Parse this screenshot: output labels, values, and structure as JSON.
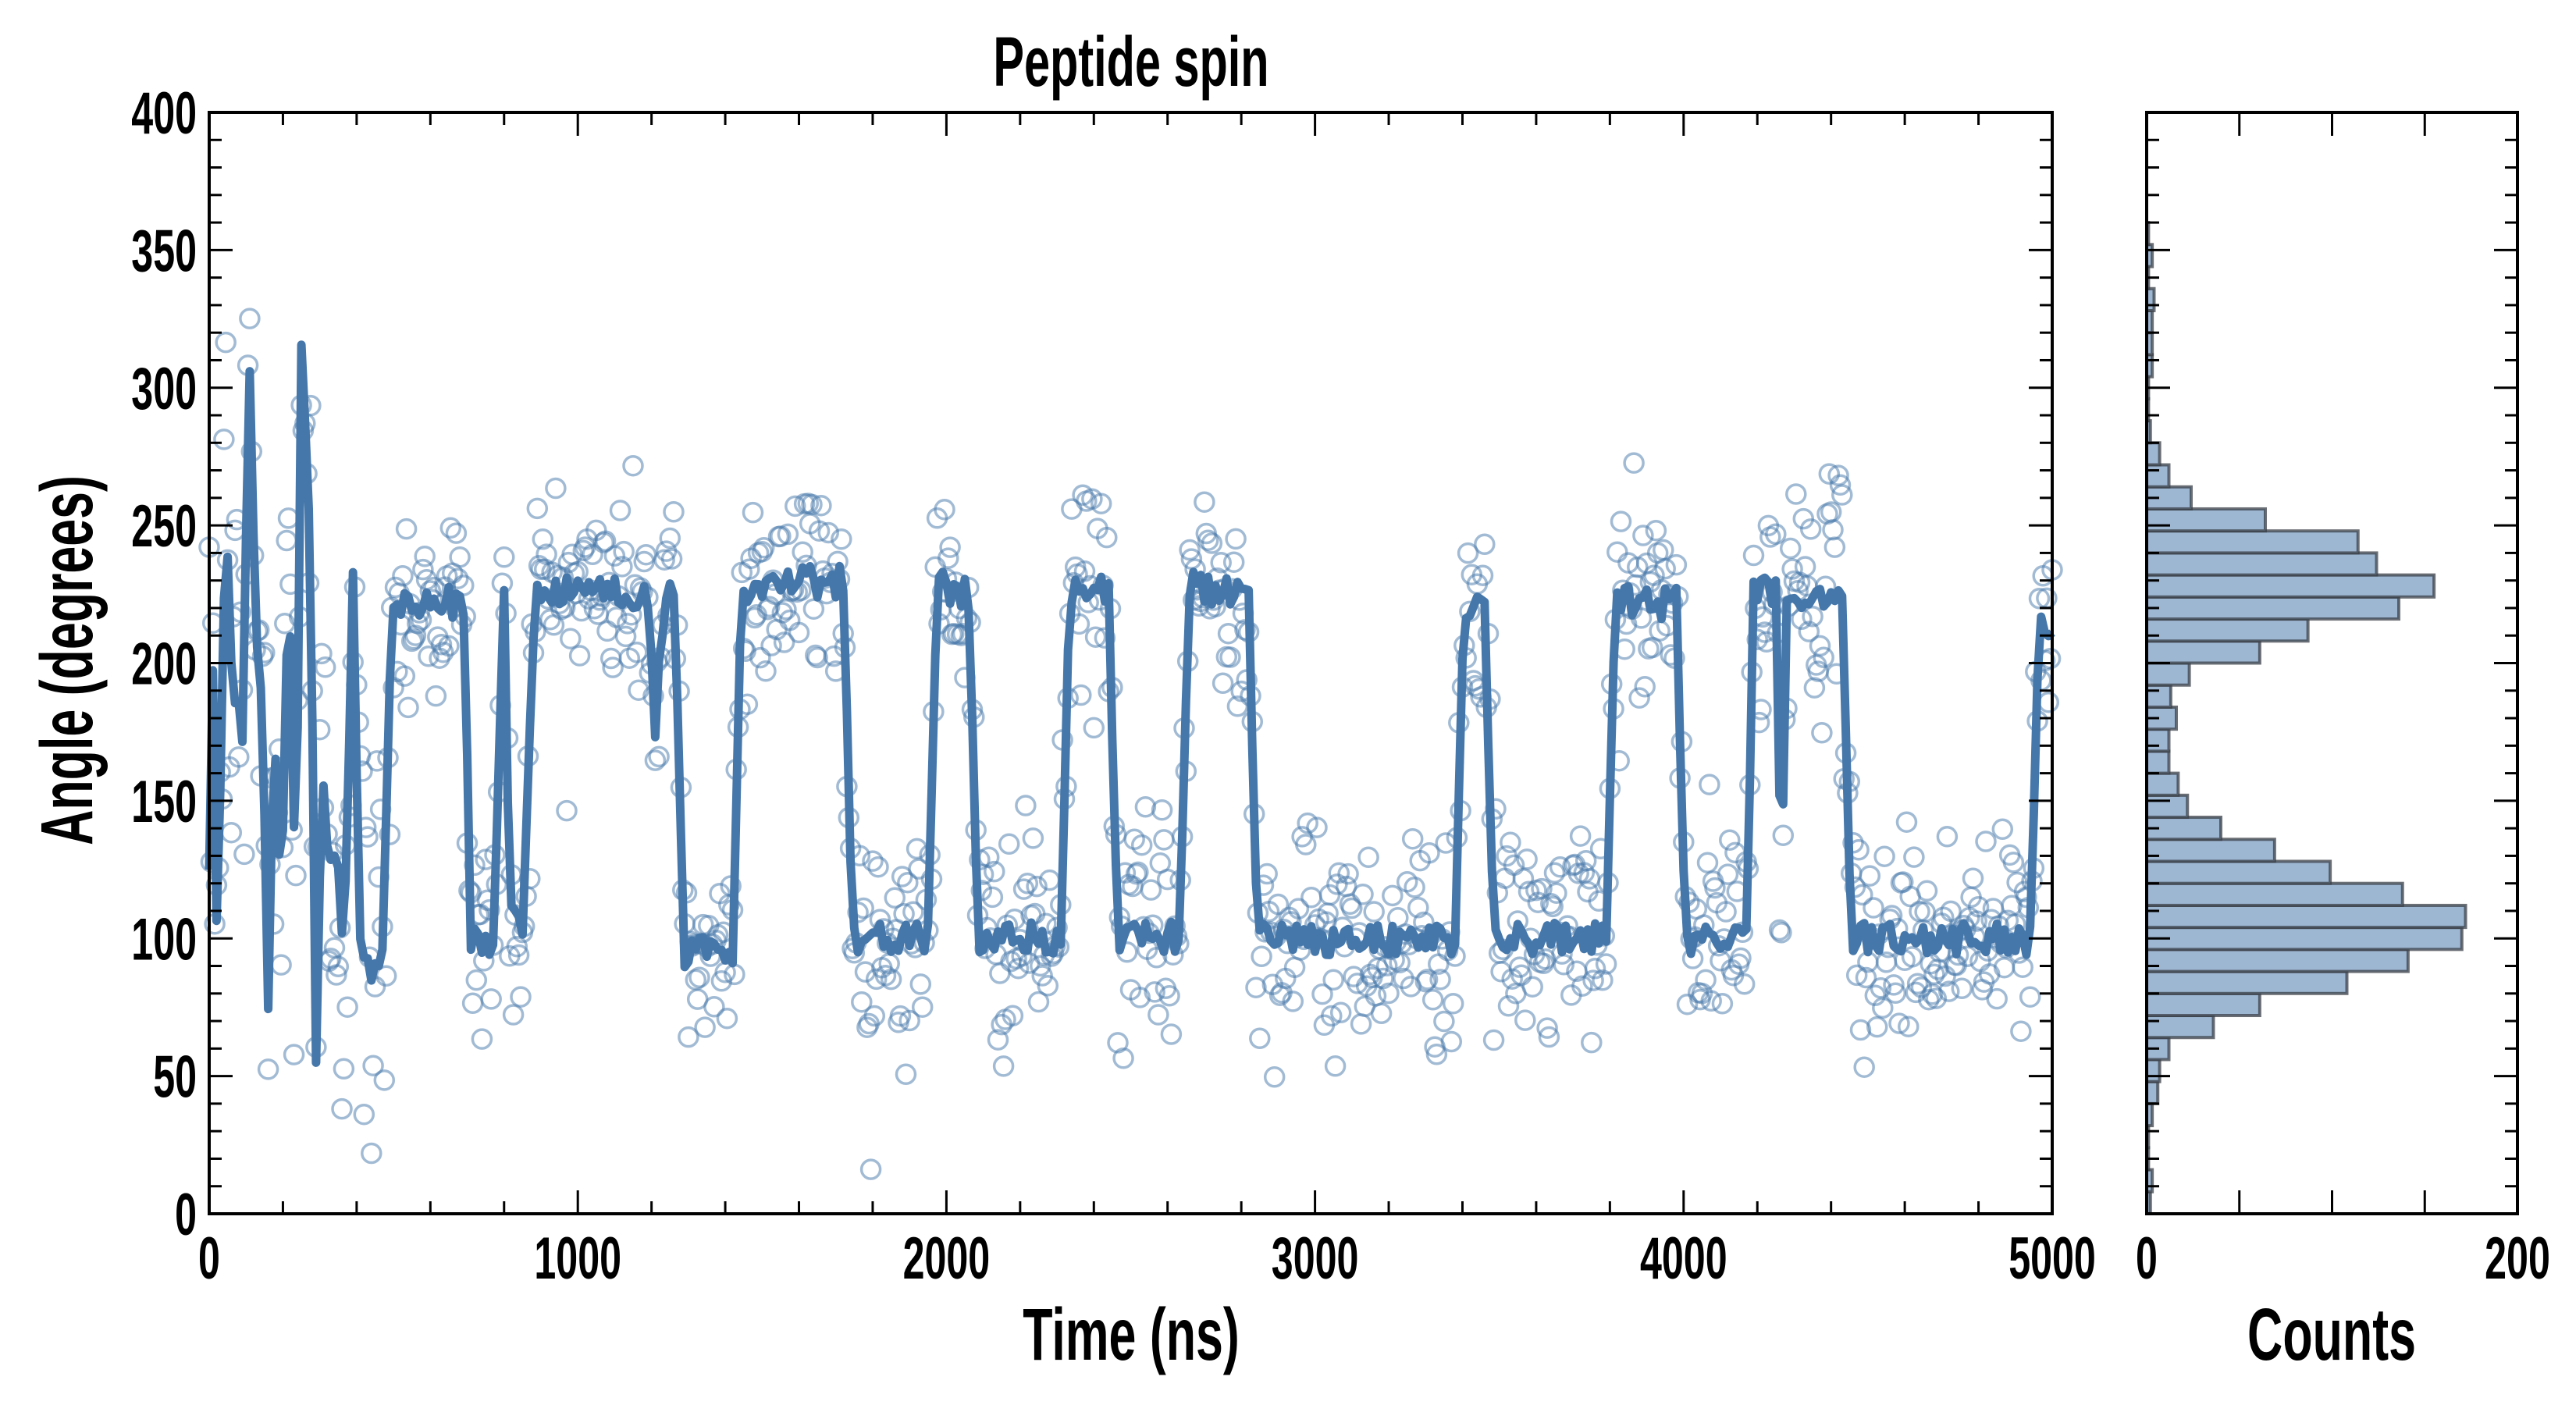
{
  "chart_data": [
    {
      "type": "scatter+line",
      "title": "Peptide spin",
      "xlabel": "Time (ns)",
      "ylabel": "Angle (degrees)",
      "xlim": [
        0,
        5000
      ],
      "ylim": [
        0,
        400
      ],
      "xticks": [
        "0",
        "1000",
        "2000",
        "3000",
        "4000",
        "5000"
      ],
      "yticks": [
        "0",
        "50",
        "100",
        "150",
        "200",
        "250",
        "300",
        "350",
        "400"
      ],
      "x_minor_step": 200,
      "y_minor_step": 10,
      "grid": false,
      "colors": {
        "line": "#4577aa",
        "scatter": "#4577aa"
      },
      "scatter_sampling_ns": 5,
      "scatter_noise_sd_deg": 20,
      "line_sampling_ns": 10,
      "line_noise_deg": 6,
      "trace_knots_ns_deg": [
        [
          0,
          120
        ],
        [
          10,
          200
        ],
        [
          20,
          110
        ],
        [
          30,
          150
        ],
        [
          45,
          260
        ],
        [
          60,
          200
        ],
        [
          80,
          180
        ],
        [
          95,
          160
        ],
        [
          105,
          330
        ],
        [
          125,
          220
        ],
        [
          140,
          185
        ],
        [
          150,
          150
        ],
        [
          160,
          75
        ],
        [
          175,
          180
        ],
        [
          195,
          110
        ],
        [
          215,
          240
        ],
        [
          235,
          105
        ],
        [
          250,
          310
        ],
        [
          262,
          290
        ],
        [
          275,
          230
        ],
        [
          290,
          60
        ],
        [
          305,
          160
        ],
        [
          325,
          120
        ],
        [
          345,
          140
        ],
        [
          365,
          90
        ],
        [
          390,
          230
        ],
        [
          410,
          100
        ],
        [
          440,
          85
        ],
        [
          470,
          95
        ],
        [
          495,
          215
        ],
        [
          520,
          222
        ],
        [
          690,
          222
        ],
        [
          710,
          100
        ],
        [
          770,
          100
        ],
        [
          800,
          225
        ],
        [
          815,
          110
        ],
        [
          850,
          100
        ],
        [
          885,
          228
        ],
        [
          1190,
          225
        ],
        [
          1210,
          175
        ],
        [
          1235,
          225
        ],
        [
          1260,
          230
        ],
        [
          1290,
          95
        ],
        [
          1420,
          95
        ],
        [
          1445,
          228
        ],
        [
          1720,
          230
        ],
        [
          1745,
          100
        ],
        [
          1950,
          100
        ],
        [
          1975,
          228
        ],
        [
          2060,
          225
        ],
        [
          2085,
          100
        ],
        [
          2310,
          100
        ],
        [
          2335,
          228
        ],
        [
          2440,
          225
        ],
        [
          2465,
          100
        ],
        [
          2630,
          100
        ],
        [
          2660,
          228
        ],
        [
          2820,
          225
        ],
        [
          2845,
          100
        ],
        [
          3380,
          100
        ],
        [
          3405,
          220
        ],
        [
          3460,
          220
        ],
        [
          3485,
          100
        ],
        [
          3790,
          100
        ],
        [
          3815,
          222
        ],
        [
          3980,
          222
        ],
        [
          4005,
          100
        ],
        [
          4170,
          100
        ],
        [
          4190,
          225
        ],
        [
          4250,
          225
        ],
        [
          4265,
          110
        ],
        [
          4280,
          225
        ],
        [
          4430,
          225
        ],
        [
          4455,
          100
        ],
        [
          4940,
          100
        ],
        [
          4965,
          215
        ],
        [
          5000,
          215
        ]
      ]
    },
    {
      "type": "bar",
      "orientation": "horizontal",
      "xlabel": "Counts",
      "xlim": [
        0,
        200
      ],
      "ylim": [
        0,
        400
      ],
      "xticks": [
        "0",
        "200"
      ],
      "colors": {
        "fill": "#9db6d2",
        "edge": "#3a3f47"
      },
      "bin_start_deg": 0,
      "bin_width_deg": 8,
      "counts": [
        2,
        3,
        1,
        1,
        3,
        6,
        7,
        12,
        36,
        61,
        108,
        141,
        170,
        172,
        138,
        99,
        69,
        40,
        22,
        17,
        12,
        12,
        16,
        13,
        23,
        61,
        87,
        136,
        155,
        124,
        114,
        64,
        24,
        12,
        7,
        2,
        1,
        1,
        3,
        3,
        3,
        4,
        1,
        3,
        1
      ]
    }
  ]
}
